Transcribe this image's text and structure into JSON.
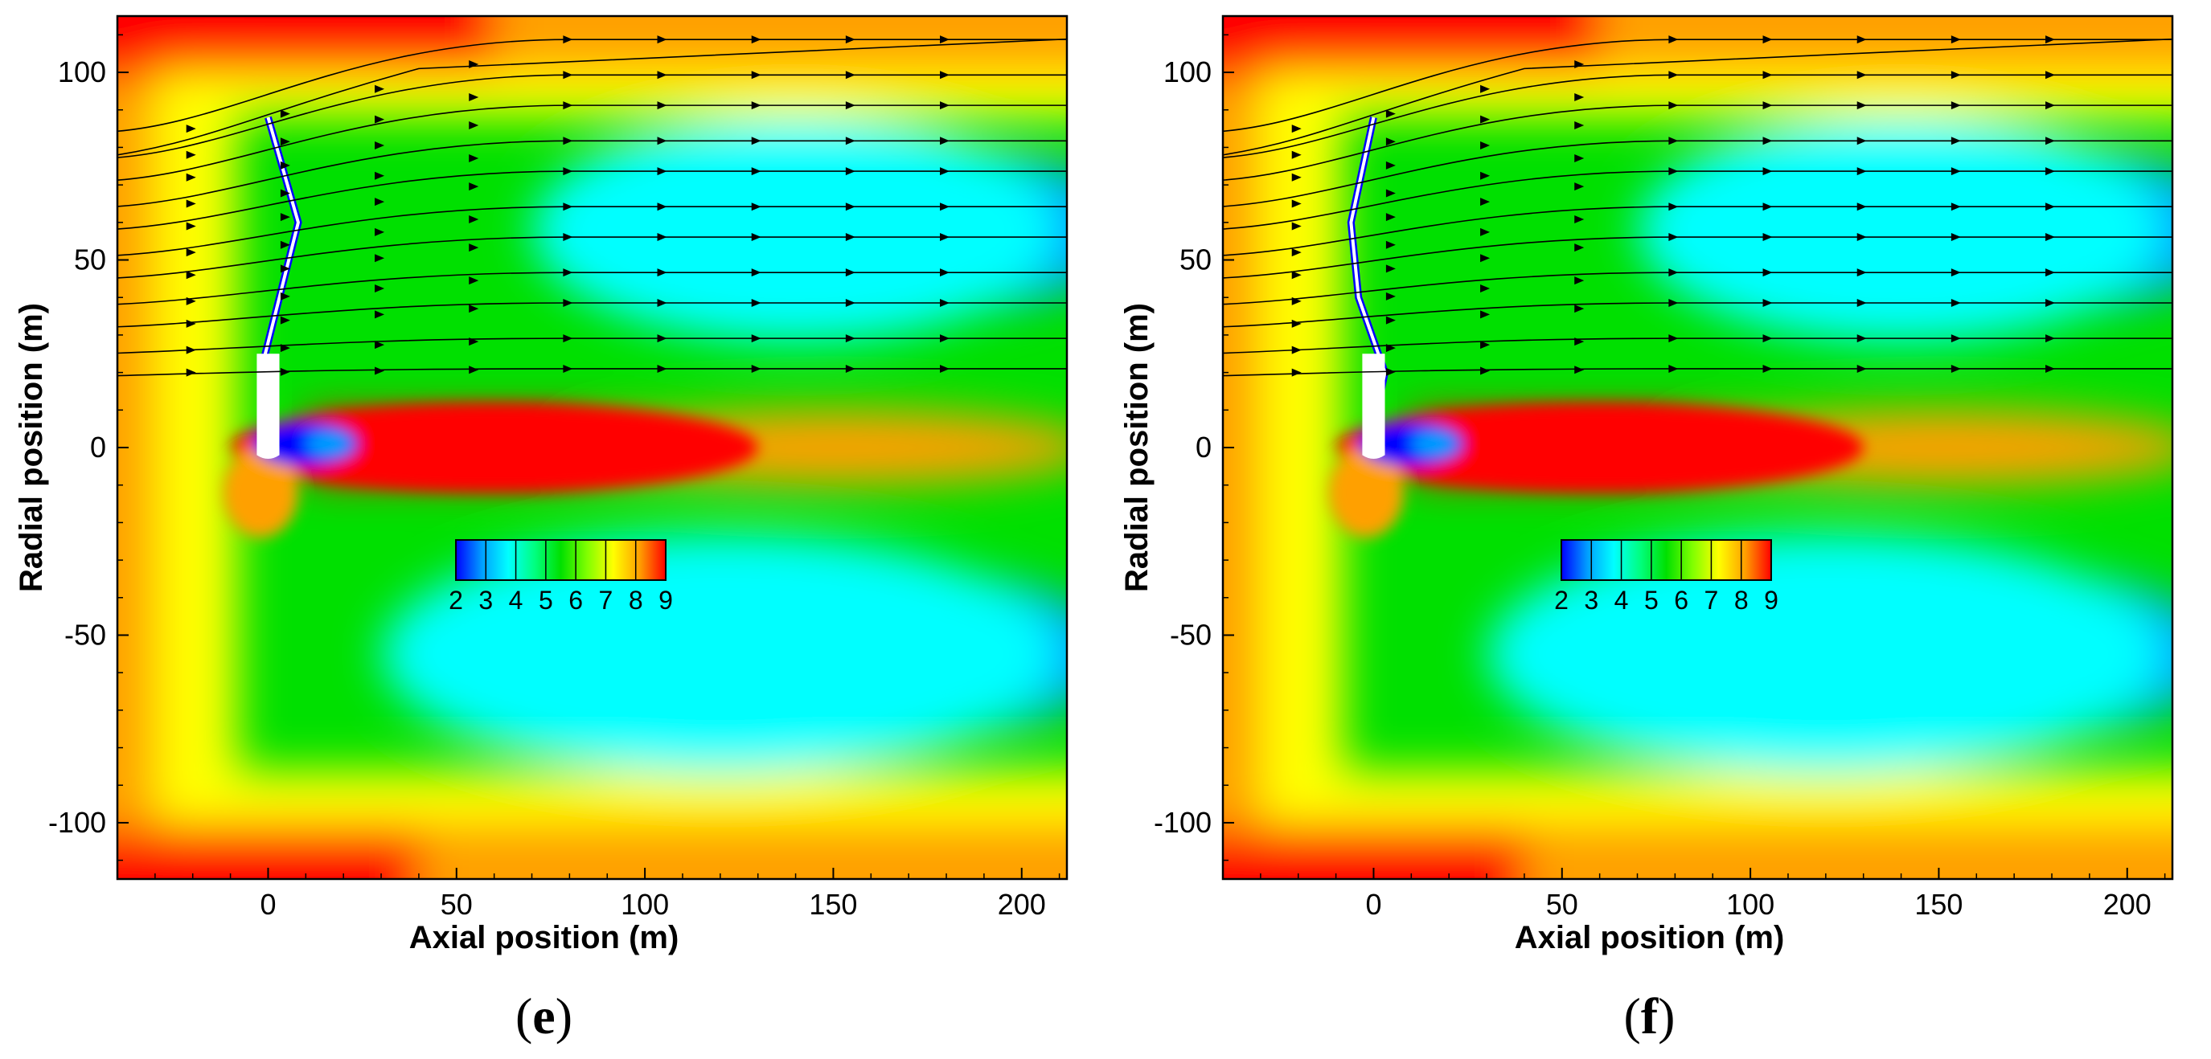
{
  "chart_data": [
    {
      "type": "heatmap",
      "panel_label": "e",
      "xlabel": "Axial position (m)",
      "ylabel": "Radial position (m)",
      "xlim": [
        -40,
        212
      ],
      "ylim": [
        -115,
        115
      ],
      "x_ticks": [
        0,
        50,
        100,
        150,
        200
      ],
      "y_ticks": [
        -100,
        -50,
        0,
        50,
        100
      ],
      "colorbar": {
        "ticks": [
          2,
          3,
          4,
          5,
          6,
          7,
          8,
          9
        ],
        "range": [
          2,
          9
        ],
        "colors": [
          "#0000ff",
          "#00a0ff",
          "#00ffff",
          "#00ff80",
          "#00e000",
          "#80ff00",
          "#ffff00",
          "#ffa000",
          "#ff0000"
        ]
      },
      "blade_shape": [
        [
          -1,
          1
        ],
        [
          -2,
          20
        ],
        [
          3,
          40
        ],
        [
          8,
          60
        ],
        [
          0,
          88
        ]
      ],
      "streamline_start_y": [
        20,
        26,
        33,
        39,
        46,
        52,
        59,
        65,
        72,
        78,
        85
      ]
    },
    {
      "type": "heatmap",
      "panel_label": "f",
      "xlabel": "Axial position (m)",
      "ylabel": "Radial position (m)",
      "xlim": [
        -40,
        212
      ],
      "ylim": [
        -115,
        115
      ],
      "x_ticks": [
        0,
        50,
        100,
        150,
        200
      ],
      "y_ticks": [
        -100,
        -50,
        0,
        50,
        100
      ],
      "colorbar": {
        "ticks": [
          2,
          3,
          4,
          5,
          6,
          7,
          8,
          9
        ],
        "range": [
          2,
          9
        ],
        "colors": [
          "#0000ff",
          "#00a0ff",
          "#00ffff",
          "#00ff80",
          "#00e000",
          "#80ff00",
          "#ffff00",
          "#ffa000",
          "#ff0000"
        ]
      },
      "blade_shape": [
        [
          -1,
          1
        ],
        [
          3,
          20
        ],
        [
          -4,
          40
        ],
        [
          -6,
          60
        ],
        [
          0,
          88
        ]
      ],
      "streamline_start_y": [
        20,
        26,
        33,
        39,
        46,
        52,
        59,
        65,
        72,
        78,
        85
      ]
    }
  ]
}
